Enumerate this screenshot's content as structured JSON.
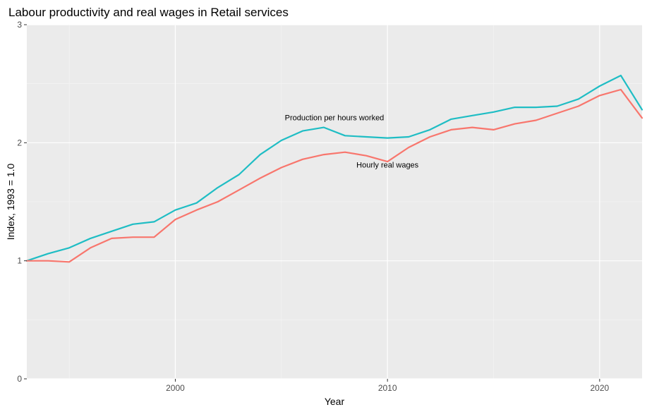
{
  "chart_data": {
    "type": "line",
    "title": "Labour productivity and real wages in Retail services",
    "xlabel": "Year",
    "ylabel": "Index, 1993 = 1.0",
    "xlim": [
      1993,
      2022
    ],
    "ylim": [
      0,
      3
    ],
    "x_ticks": [
      2000,
      2010,
      2020
    ],
    "y_ticks": [
      0,
      1,
      2,
      3
    ],
    "grid": true,
    "legend": "none",
    "background": "#ebebeb",
    "x": [
      1993,
      1994,
      1995,
      1996,
      1997,
      1998,
      1999,
      2000,
      2001,
      2002,
      2003,
      2004,
      2005,
      2006,
      2007,
      2008,
      2009,
      2010,
      2011,
      2012,
      2013,
      2014,
      2015,
      2016,
      2017,
      2018,
      2019,
      2020,
      2021,
      2022
    ],
    "series": [
      {
        "name": "Production per hours worked",
        "color": "#1fbdc4",
        "values": [
          1.0,
          1.06,
          1.11,
          1.19,
          1.25,
          1.31,
          1.33,
          1.43,
          1.49,
          1.62,
          1.73,
          1.9,
          2.02,
          2.1,
          2.13,
          2.06,
          2.05,
          2.04,
          2.05,
          2.11,
          2.2,
          2.23,
          2.26,
          2.3,
          2.3,
          2.31,
          2.37,
          2.48,
          2.57,
          2.28
        ]
      },
      {
        "name": "Hourly real wages",
        "color": "#f8766d",
        "values": [
          1.0,
          1.0,
          0.99,
          1.11,
          1.19,
          1.2,
          1.2,
          1.35,
          1.43,
          1.5,
          1.6,
          1.7,
          1.79,
          1.86,
          1.9,
          1.92,
          1.89,
          1.84,
          1.96,
          2.05,
          2.11,
          2.13,
          2.11,
          2.16,
          2.19,
          2.25,
          2.31,
          2.4,
          2.45,
          2.21
        ]
      }
    ],
    "annotations": [
      {
        "text": "Production per hours worked",
        "x": 2007.5,
        "y": 2.19
      },
      {
        "text": "Hourly real wages",
        "x": 2010,
        "y": 1.79
      }
    ]
  }
}
